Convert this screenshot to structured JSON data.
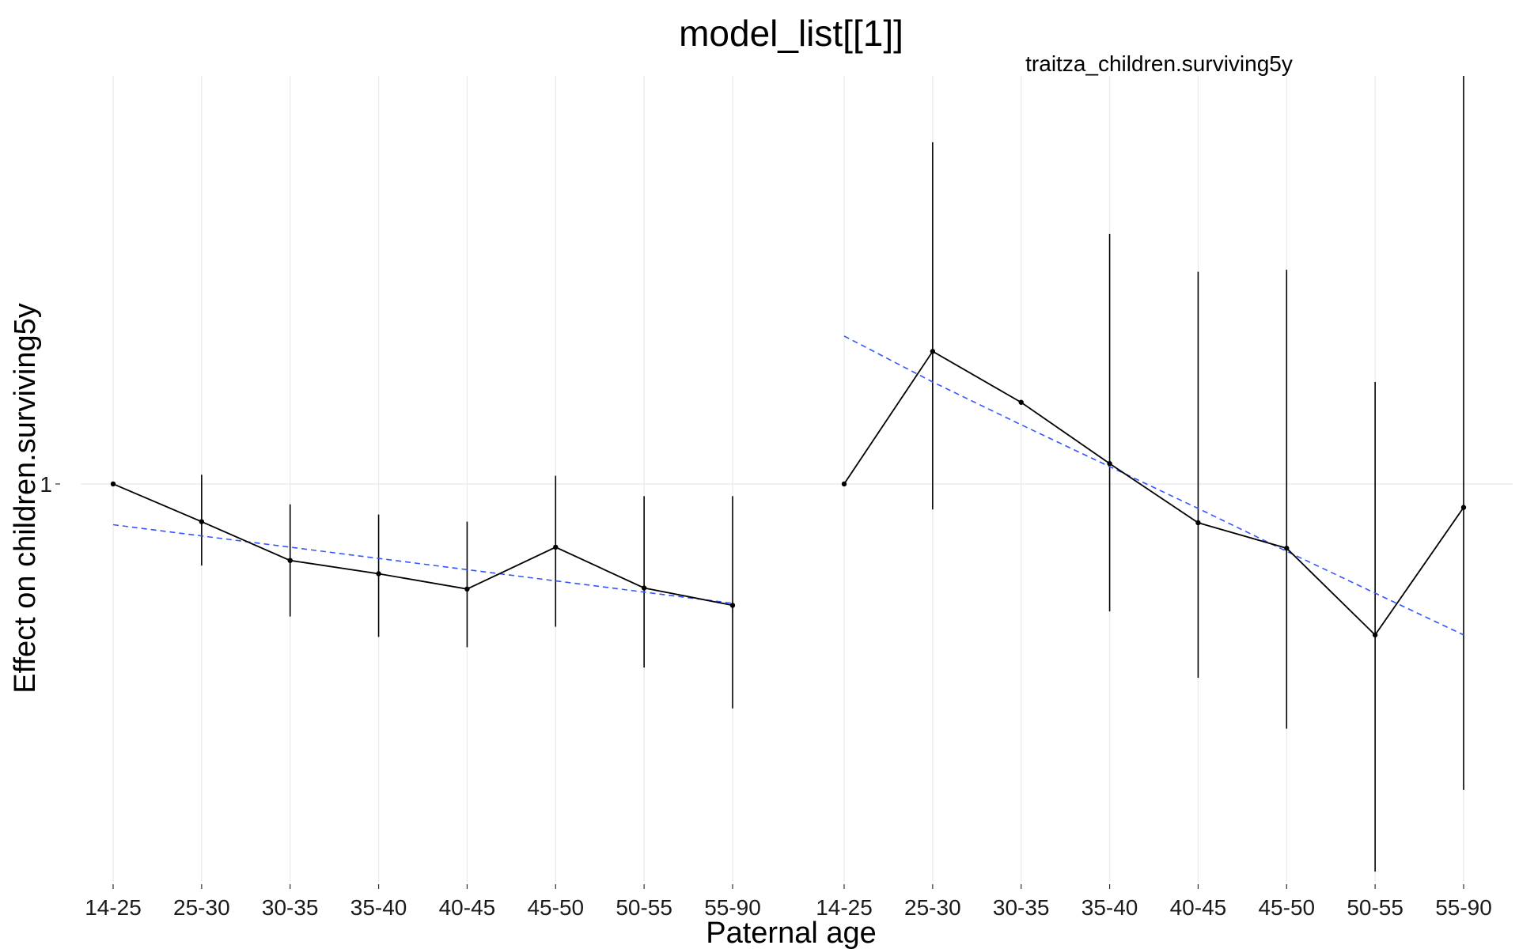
{
  "chart_data": {
    "type": "line",
    "title": "model_list[[1]]",
    "xlabel": "Paternal age",
    "ylabel": "Effect on children.surviving5y",
    "y_tick_labels": [
      "1"
    ],
    "ylim": [
      0.61,
      1.4
    ],
    "categories": [
      "14-25",
      "25-30",
      "30-35",
      "35-40",
      "40-45",
      "45-50",
      "50-55",
      "55-90"
    ],
    "grid": true,
    "panels": [
      {
        "strip_label": "",
        "series": [
          {
            "estimate": [
              1.0,
              0.963,
              0.925,
              0.912,
              0.897,
              0.938,
              0.898,
              0.881
            ],
            "lower": [
              1.0,
              0.92,
              0.87,
              0.85,
              0.84,
              0.86,
              0.82,
              0.78
            ],
            "upper": [
              1.0,
              1.009,
              0.98,
              0.97,
              0.963,
              1.008,
              0.988,
              0.988
            ],
            "trend": [
              0.96,
              0.949,
              0.938,
              0.927,
              0.916,
              0.905,
              0.894,
              0.883
            ],
            "line_color": "#000000",
            "trend_color": "#3355ff"
          }
        ]
      },
      {
        "strip_label": "traitza_children.surviving5y",
        "series": [
          {
            "estimate": [
              1.0,
              1.13,
              1.08,
              1.02,
              0.962,
              0.937,
              0.852,
              0.977
            ],
            "lower": [
              1.0,
              0.975,
              null,
              0.875,
              0.81,
              0.76,
              0.62,
              0.7
            ],
            "upper": [
              1.0,
              1.335,
              1.29,
              1.245,
              1.208,
              1.21,
              1.1,
              1.4
            ],
            "trend": [
              1.145,
              1.1,
              1.058,
              1.017,
              0.976,
              0.934,
              0.893,
              0.852
            ],
            "line_color": "#000000",
            "trend_color": "#3355ff"
          }
        ]
      }
    ]
  }
}
